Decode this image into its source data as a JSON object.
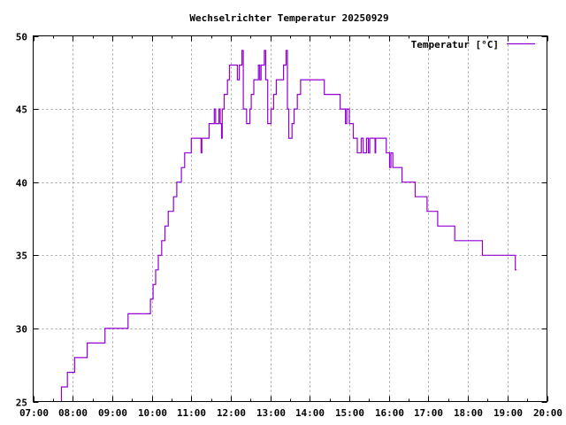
{
  "chart_data": {
    "type": "line",
    "title": "Wechselrichter Temperatur 20250929",
    "xlabel": "",
    "ylabel": "",
    "xlim": [
      "07:00",
      "20:00"
    ],
    "ylim": [
      25,
      50
    ],
    "xticks": [
      "07:00",
      "08:00",
      "09:00",
      "10:00",
      "11:00",
      "12:00",
      "13:00",
      "14:00",
      "15:00",
      "16:00",
      "17:00",
      "18:00",
      "19:00",
      "20:00"
    ],
    "yticks": [
      "25",
      "30",
      "35",
      "40",
      "45",
      "50"
    ],
    "grid": true,
    "legend_position": "top-right",
    "step": true,
    "series": [
      {
        "name": "Temperatur [°C]",
        "color": "#9400d3",
        "points": [
          [
            "07:43",
            25
          ],
          [
            "07:43",
            26
          ],
          [
            "07:52",
            27
          ],
          [
            "08:03",
            28
          ],
          [
            "08:22",
            29
          ],
          [
            "08:49",
            30
          ],
          [
            "09:24",
            31
          ],
          [
            "09:58",
            32
          ],
          [
            "10:02",
            33
          ],
          [
            "10:06",
            34
          ],
          [
            "10:10",
            35
          ],
          [
            "10:15",
            36
          ],
          [
            "10:20",
            37
          ],
          [
            "10:25",
            38
          ],
          [
            "10:33",
            39
          ],
          [
            "10:38",
            40
          ],
          [
            "10:45",
            41
          ],
          [
            "10:50",
            42
          ],
          [
            "11:00",
            43
          ],
          [
            "11:15",
            42
          ],
          [
            "11:16",
            43
          ],
          [
            "11:27",
            44
          ],
          [
            "11:35",
            45
          ],
          [
            "11:37",
            44
          ],
          [
            "11:42",
            45
          ],
          [
            "11:44",
            44
          ],
          [
            "11:46",
            43
          ],
          [
            "11:47",
            45
          ],
          [
            "11:50",
            46
          ],
          [
            "11:55",
            47
          ],
          [
            "11:58",
            48
          ],
          [
            "12:10",
            47
          ],
          [
            "12:13",
            48
          ],
          [
            "12:17",
            49
          ],
          [
            "12:19",
            45
          ],
          [
            "12:24",
            44
          ],
          [
            "12:29",
            45
          ],
          [
            "12:31",
            46
          ],
          [
            "12:35",
            47
          ],
          [
            "12:42",
            48
          ],
          [
            "12:44",
            47
          ],
          [
            "12:46",
            48
          ],
          [
            "12:51",
            49
          ],
          [
            "12:53",
            47
          ],
          [
            "12:56",
            44
          ],
          [
            "13:01",
            45
          ],
          [
            "13:05",
            46
          ],
          [
            "13:09",
            47
          ],
          [
            "13:20",
            48
          ],
          [
            "13:24",
            49
          ],
          [
            "13:26",
            45
          ],
          [
            "13:28",
            43
          ],
          [
            "13:33",
            44
          ],
          [
            "13:36",
            45
          ],
          [
            "13:41",
            46
          ],
          [
            "13:46",
            47
          ],
          [
            "14:22",
            46
          ],
          [
            "14:46",
            45
          ],
          [
            "14:54",
            44
          ],
          [
            "14:56",
            45
          ],
          [
            "15:00",
            44
          ],
          [
            "15:06",
            43
          ],
          [
            "15:12",
            42
          ],
          [
            "15:18",
            43
          ],
          [
            "15:21",
            42
          ],
          [
            "15:26",
            43
          ],
          [
            "15:29",
            42
          ],
          [
            "15:31",
            43
          ],
          [
            "15:39",
            42
          ],
          [
            "15:40",
            43
          ],
          [
            "15:56",
            42
          ],
          [
            "16:01",
            41
          ],
          [
            "16:03",
            42
          ],
          [
            "16:06",
            41
          ],
          [
            "16:20",
            40
          ],
          [
            "16:40",
            39
          ],
          [
            "16:58",
            38
          ],
          [
            "17:14",
            37
          ],
          [
            "17:40",
            36
          ],
          [
            "18:22",
            35
          ],
          [
            "19:12",
            34
          ],
          [
            "19:14",
            34
          ]
        ]
      }
    ]
  }
}
